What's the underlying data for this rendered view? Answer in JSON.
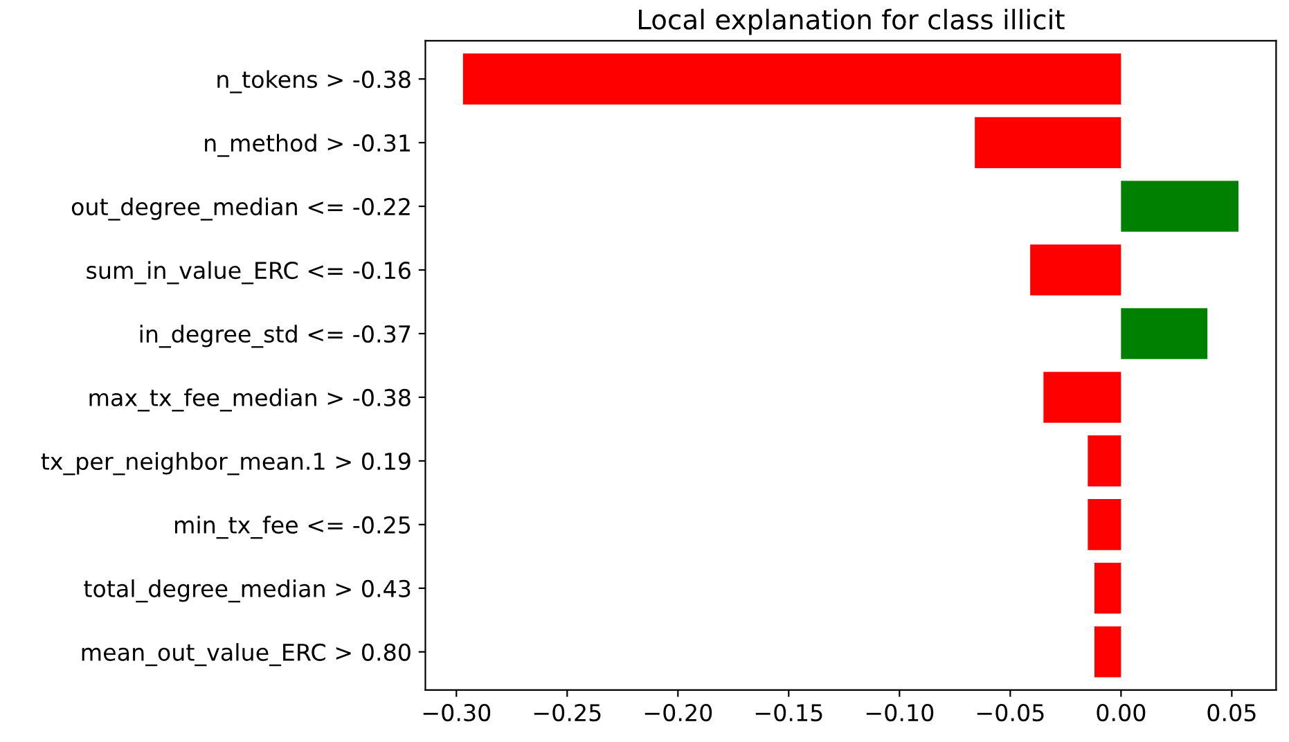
{
  "chart_data": {
    "type": "bar",
    "orientation": "horizontal",
    "title": "Local explanation for class illicit",
    "categories": [
      "n_tokens > -0.38",
      "n_method > -0.31",
      "out_degree_median <= -0.22",
      "sum_in_value_ERC <= -0.16",
      "in_degree_std <= -0.37",
      "max_tx_fee_median > -0.38",
      "tx_per_neighbor_mean.1 > 0.19",
      "min_tx_fee <= -0.25",
      "total_degree_median > 0.43",
      "mean_out_value_ERC > 0.80"
    ],
    "values": [
      -0.297,
      -0.066,
      0.053,
      -0.041,
      0.039,
      -0.035,
      -0.015,
      -0.015,
      -0.012,
      -0.012
    ],
    "colors": [
      "#ff0000",
      "#ff0000",
      "#008000",
      "#ff0000",
      "#008000",
      "#ff0000",
      "#ff0000",
      "#ff0000",
      "#ff0000",
      "#ff0000"
    ],
    "xlim": [
      -0.314,
      0.07
    ],
    "xticks": [
      {
        "value": -0.3,
        "label": "−0.30"
      },
      {
        "value": -0.25,
        "label": "−0.25"
      },
      {
        "value": -0.2,
        "label": "−0.20"
      },
      {
        "value": -0.15,
        "label": "−0.15"
      },
      {
        "value": -0.1,
        "label": "−0.10"
      },
      {
        "value": -0.05,
        "label": "−0.05"
      },
      {
        "value": 0.0,
        "label": "0.00"
      },
      {
        "value": 0.05,
        "label": "0.05"
      }
    ],
    "grid": false
  }
}
